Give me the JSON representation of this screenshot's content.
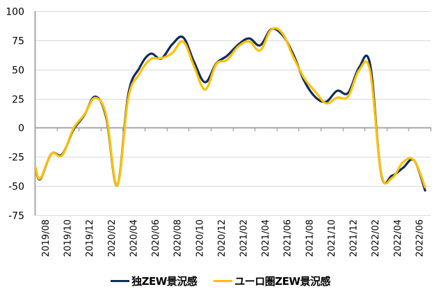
{
  "chart_data": {
    "type": "line",
    "title": "",
    "xlabel": "",
    "ylabel": "",
    "ylim": [
      -75,
      100
    ],
    "yticks": [
      100,
      75,
      50,
      25,
      0,
      -25,
      -50,
      -75
    ],
    "ytick_labels": [
      "100",
      "75",
      "50",
      "25",
      "0",
      "-25",
      "-50",
      "-75"
    ],
    "grid": true,
    "legend_position": "bottom",
    "x": [
      "2019/08",
      "2019/09",
      "2019/10",
      "2019/11",
      "2019/12",
      "2020/01",
      "2020/02",
      "2020/03",
      "2020/04",
      "2020/05",
      "2020/06",
      "2020/07",
      "2020/08",
      "2020/09",
      "2020/10",
      "2020/11",
      "2020/12",
      "2021/01",
      "2021/02",
      "2021/03",
      "2021/04",
      "2021/05",
      "2021/06",
      "2021/07",
      "2021/08",
      "2021/09",
      "2021/10",
      "2021/11",
      "2021/12",
      "2022/01",
      "2022/02",
      "2022/03",
      "2022/04",
      "2022/05",
      "2022/06",
      "2022/07"
    ],
    "xtick_labels": [
      "2019/08",
      "2019/10",
      "2019/12",
      "2020/02",
      "2020/04",
      "2020/06",
      "2020/08",
      "2020/10",
      "2020/12",
      "2021/02",
      "2021/04",
      "2021/06",
      "2021/08",
      "2021/10",
      "2021/12",
      "2022/02",
      "2022/04",
      "2022/06"
    ],
    "series": [
      {
        "name": "独ZEW景況感",
        "color": "#0d2b5e",
        "values": [
          -44.1,
          -22.5,
          -22.8,
          -2.1,
          10.7,
          26.7,
          8.7,
          -49.5,
          28.2,
          51.0,
          63.4,
          59.3,
          71.5,
          77.4,
          56.1,
          39.0,
          55.0,
          61.8,
          71.2,
          76.6,
          70.7,
          84.4,
          79.8,
          63.3,
          40.4,
          26.5,
          22.3,
          31.7,
          29.9,
          51.7,
          54.3,
          -39.3,
          -41.0,
          -34.3,
          -28.0,
          -53.8
        ]
      },
      {
        "name": "ユーロ圏ZEW景況感",
        "color": "#ffc000",
        "values": [
          -43.6,
          -22.4,
          -23.5,
          -1.0,
          11.2,
          25.6,
          10.4,
          -49.5,
          25.2,
          46.0,
          58.6,
          59.6,
          64.0,
          73.9,
          52.3,
          32.8,
          54.4,
          58.3,
          69.6,
          74.0,
          66.3,
          84.0,
          81.3,
          61.2,
          42.7,
          31.1,
          21.0,
          25.9,
          26.8,
          49.4,
          48.6,
          -38.7,
          -43.0,
          -29.5,
          -28.0,
          -51.1
        ]
      }
    ]
  },
  "legend": {
    "items": [
      {
        "label": "独ZEW景況感",
        "color": "#0d2b5e"
      },
      {
        "label": "ユーロ圏ZEW景況感",
        "color": "#ffc000"
      }
    ]
  },
  "style": {
    "grid_color": "#d9d9d9",
    "axis_color": "#a6a6a6"
  }
}
